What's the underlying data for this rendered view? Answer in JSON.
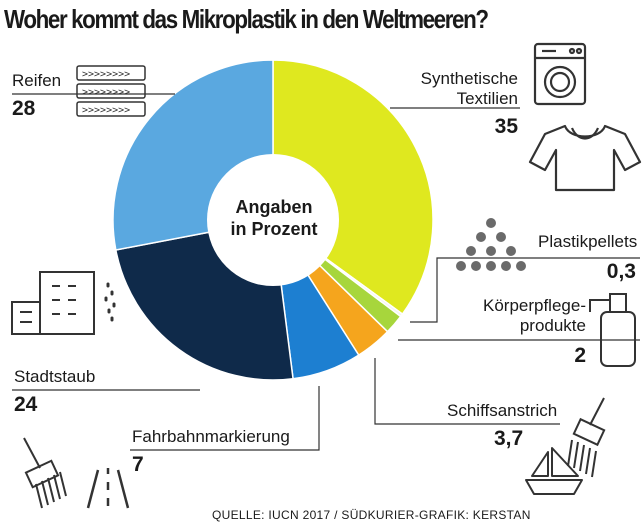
{
  "header": {
    "title": "Woher kommt das Mikroplastik in den Weltmeeren?"
  },
  "footer": {
    "source": "QUELLE: IUCN 2017 / SÜDKURIER-GRAFIK: KERSTAN"
  },
  "chart_data": {
    "type": "pie",
    "title": "Woher kommt das Mikroplastik in den Weltmeeren?",
    "center_label": [
      "Angaben",
      "in Prozent"
    ],
    "unit": "Prozent",
    "slices": [
      {
        "label": "Synthetische Textilien",
        "label_lines": [
          "Synthetische",
          "Textilien"
        ],
        "value": 35,
        "value_text": "35",
        "color": "#dfe81f"
      },
      {
        "label": "Plastikpellets",
        "label_lines": [
          "Plastikpellets"
        ],
        "value": 0.3,
        "value_text": "0,3",
        "color": "#f3f3f3"
      },
      {
        "label": "Körperpflegeprodukte",
        "label_lines": [
          "Körperpflege-",
          "produkte"
        ],
        "value": 2,
        "value_text": "2",
        "color": "#a7d63c"
      },
      {
        "label": "Schiffsanstrich",
        "label_lines": [
          "Schiffsanstrich"
        ],
        "value": 3.7,
        "value_text": "3,7",
        "color": "#f5a51d"
      },
      {
        "label": "Fahrbahnmarkierung",
        "label_lines": [
          "Fahrbahnmarkierung"
        ],
        "value": 7,
        "value_text": "7",
        "color": "#1d7fd1"
      },
      {
        "label": "Stadtstaub",
        "label_lines": [
          "Stadtstaub"
        ],
        "value": 24,
        "value_text": "24",
        "color": "#0f2a4a"
      },
      {
        "label": "Reifen",
        "label_lines": [
          "Reifen"
        ],
        "value": 28,
        "value_text": "28",
        "color": "#5aa8e0"
      }
    ]
  },
  "icons": [
    "tire-tread-icon",
    "washing-machine-icon",
    "shirt-icon",
    "pellets-icon",
    "spray-bottle-icon",
    "boat-icon",
    "paint-brush-icon",
    "buildings-icon",
    "road-icon"
  ]
}
